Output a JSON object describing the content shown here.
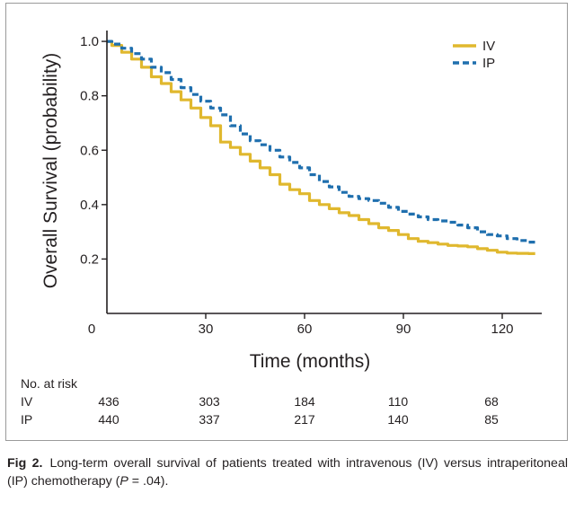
{
  "chart_data": {
    "type": "line",
    "xlabel": "Time (months)",
    "ylabel": "Overall Survival (probability)",
    "xlim": [
      0,
      132
    ],
    "ylim": [
      0.0,
      1.03
    ],
    "x_ticks": [
      0,
      30,
      60,
      90,
      120
    ],
    "x_tick_labels": [
      "0",
      "30",
      "60",
      "90",
      "120"
    ],
    "y_ticks": [
      0.2,
      0.4,
      0.6,
      0.8,
      1.0
    ],
    "y_tick_labels": [
      "0.2",
      "0.4",
      "0.6",
      "0.8",
      "1.0"
    ],
    "grid": false,
    "legend_position": "top-right",
    "series": [
      {
        "name": "IV",
        "color": "#e0b82e",
        "style": "solid",
        "x": [
          0,
          3,
          6,
          9,
          12,
          15,
          18,
          21,
          24,
          27,
          30,
          33,
          36,
          39,
          42,
          45,
          48,
          51,
          54,
          57,
          60,
          63,
          66,
          69,
          72,
          75,
          78,
          81,
          84,
          87,
          90,
          93,
          96,
          99,
          102,
          105,
          108,
          111,
          114,
          117,
          120,
          123,
          126,
          130
        ],
        "y": [
          1.0,
          0.985,
          0.96,
          0.935,
          0.905,
          0.87,
          0.845,
          0.815,
          0.785,
          0.755,
          0.72,
          0.69,
          0.63,
          0.61,
          0.585,
          0.56,
          0.535,
          0.51,
          0.475,
          0.455,
          0.44,
          0.415,
          0.4,
          0.385,
          0.37,
          0.36,
          0.345,
          0.33,
          0.315,
          0.305,
          0.29,
          0.275,
          0.265,
          0.26,
          0.255,
          0.25,
          0.248,
          0.245,
          0.238,
          0.232,
          0.225,
          0.222,
          0.221,
          0.22
        ]
      },
      {
        "name": "IP",
        "color": "#1f6fae",
        "style": "dashed",
        "x": [
          0,
          3,
          6,
          9,
          12,
          15,
          18,
          21,
          24,
          27,
          30,
          33,
          36,
          39,
          42,
          45,
          48,
          51,
          54,
          57,
          60,
          63,
          66,
          69,
          72,
          75,
          78,
          81,
          84,
          87,
          90,
          93,
          96,
          99,
          102,
          105,
          108,
          111,
          114,
          117,
          120,
          123,
          126,
          130
        ],
        "y": [
          1.0,
          0.99,
          0.975,
          0.955,
          0.935,
          0.905,
          0.885,
          0.86,
          0.83,
          0.805,
          0.78,
          0.755,
          0.73,
          0.69,
          0.66,
          0.635,
          0.62,
          0.6,
          0.575,
          0.555,
          0.535,
          0.51,
          0.485,
          0.465,
          0.445,
          0.43,
          0.422,
          0.415,
          0.405,
          0.39,
          0.375,
          0.365,
          0.355,
          0.345,
          0.34,
          0.335,
          0.325,
          0.315,
          0.3,
          0.29,
          0.285,
          0.275,
          0.268,
          0.262
        ]
      }
    ]
  },
  "risk_table": {
    "title": "No. at risk",
    "timepoints": [
      0,
      30,
      60,
      90,
      120
    ],
    "rows": [
      {
        "label": "IV",
        "values": [
          "436",
          "303",
          "184",
          "110",
          "68"
        ]
      },
      {
        "label": "IP",
        "values": [
          "440",
          "337",
          "217",
          "140",
          "85"
        ]
      }
    ]
  },
  "caption": {
    "label": "Fig 2.",
    "text_before_p": "Long-term overall survival of patients treated with intravenous (IV) versus intraperitoneal (IP) chemotherapy (",
    "p_symbol": "P",
    "text_after_p": " = .04)."
  }
}
